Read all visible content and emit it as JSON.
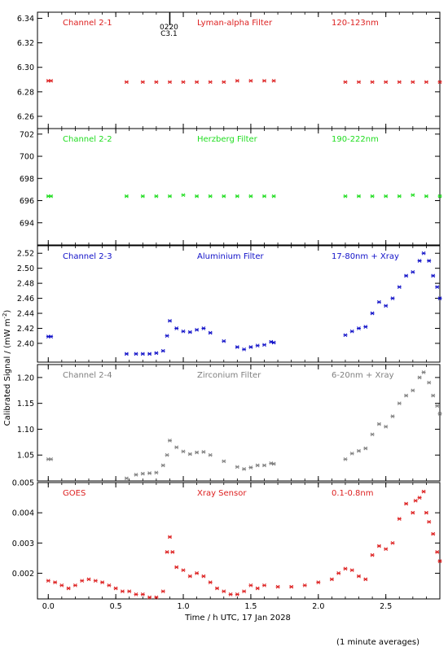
{
  "chart_data": {
    "type": "scatter",
    "xlabel": "Time / h UTC, 17 Jan 2028",
    "ylabel": "Calibrated Signal / (mW m",
    "ylabel_sup": "-2",
    "ylabel_close": ")",
    "footnote": "(1 minute averages)",
    "xlim": [
      -0.08,
      2.9
    ],
    "xticks": [
      0.0,
      0.5,
      1.0,
      1.5,
      2.0,
      2.5
    ],
    "xtick_labels": [
      "0.0",
      "0.5",
      "1.0",
      "1.5",
      "2.0",
      "2.5"
    ],
    "event_marker": {
      "x": 0.9,
      "labels": [
        "0220",
        "C3.1"
      ]
    },
    "panels": [
      {
        "name": "Channel 2-1",
        "filter": "Lyman-alpha Filter",
        "band": "120-123nm",
        "color": "#dd2020",
        "ylim": [
          6.25,
          6.345
        ],
        "yticks": [
          6.26,
          6.28,
          6.3,
          6.32,
          6.34
        ],
        "ytick_labels": [
          "6.26",
          "6.28",
          "6.30",
          "6.32",
          "6.34"
        ],
        "points": [
          [
            0.0,
            6.289
          ],
          [
            0.02,
            6.289
          ],
          [
            0.58,
            6.288
          ],
          [
            0.7,
            6.288
          ],
          [
            0.8,
            6.288
          ],
          [
            0.9,
            6.288
          ],
          [
            1.0,
            6.288
          ],
          [
            1.1,
            6.288
          ],
          [
            1.2,
            6.288
          ],
          [
            1.3,
            6.288
          ],
          [
            1.4,
            6.289
          ],
          [
            1.5,
            6.289
          ],
          [
            1.6,
            6.289
          ],
          [
            1.67,
            6.289
          ],
          [
            2.2,
            6.288
          ],
          [
            2.3,
            6.288
          ],
          [
            2.4,
            6.288
          ],
          [
            2.5,
            6.288
          ],
          [
            2.6,
            6.288
          ],
          [
            2.7,
            6.288
          ],
          [
            2.8,
            6.288
          ],
          [
            2.9,
            6.288
          ]
        ]
      },
      {
        "name": "Channel 2-2",
        "filter": "Herzberg Filter",
        "band": "190-222nm",
        "color": "#20dd20",
        "ylim": [
          692.0,
          702.5
        ],
        "yticks": [
          694,
          696,
          698,
          700,
          702
        ],
        "ytick_labels": [
          "694",
          "696",
          "698",
          "700",
          "702"
        ],
        "points": [
          [
            0.0,
            696.4
          ],
          [
            0.02,
            696.4
          ],
          [
            0.58,
            696.4
          ],
          [
            0.7,
            696.4
          ],
          [
            0.8,
            696.4
          ],
          [
            0.9,
            696.4
          ],
          [
            1.0,
            696.5
          ],
          [
            1.1,
            696.4
          ],
          [
            1.2,
            696.4
          ],
          [
            1.3,
            696.4
          ],
          [
            1.4,
            696.4
          ],
          [
            1.5,
            696.4
          ],
          [
            1.6,
            696.4
          ],
          [
            1.67,
            696.4
          ],
          [
            2.2,
            696.4
          ],
          [
            2.3,
            696.4
          ],
          [
            2.4,
            696.4
          ],
          [
            2.5,
            696.4
          ],
          [
            2.6,
            696.4
          ],
          [
            2.7,
            696.5
          ],
          [
            2.8,
            696.4
          ],
          [
            2.9,
            696.4
          ]
        ]
      },
      {
        "name": "Channel 2-3",
        "filter": "Aluminium Filter",
        "band": "17-80nm + Xray",
        "color": "#1010c8",
        "ylim": [
          2.375,
          2.53
        ],
        "yticks": [
          2.4,
          2.42,
          2.44,
          2.46,
          2.48,
          2.5,
          2.52
        ],
        "ytick_labels": [
          "2.40",
          "2.42",
          "2.44",
          "2.46",
          "2.48",
          "2.50",
          "2.52"
        ],
        "points": [
          [
            0.0,
            2.409
          ],
          [
            0.02,
            2.409
          ],
          [
            0.58,
            2.386
          ],
          [
            0.65,
            2.386
          ],
          [
            0.7,
            2.386
          ],
          [
            0.75,
            2.386
          ],
          [
            0.8,
            2.387
          ],
          [
            0.85,
            2.39
          ],
          [
            0.88,
            2.41
          ],
          [
            0.9,
            2.43
          ],
          [
            0.95,
            2.42
          ],
          [
            1.0,
            2.416
          ],
          [
            1.05,
            2.415
          ],
          [
            1.1,
            2.418
          ],
          [
            1.15,
            2.42
          ],
          [
            1.2,
            2.414
          ],
          [
            1.3,
            2.403
          ],
          [
            1.4,
            2.395
          ],
          [
            1.45,
            2.392
          ],
          [
            1.5,
            2.395
          ],
          [
            1.55,
            2.397
          ],
          [
            1.6,
            2.398
          ],
          [
            1.65,
            2.402
          ],
          [
            1.67,
            2.401
          ],
          [
            2.2,
            2.411
          ],
          [
            2.25,
            2.416
          ],
          [
            2.3,
            2.42
          ],
          [
            2.35,
            2.422
          ],
          [
            2.4,
            2.44
          ],
          [
            2.45,
            2.455
          ],
          [
            2.5,
            2.45
          ],
          [
            2.55,
            2.46
          ],
          [
            2.6,
            2.475
          ],
          [
            2.65,
            2.49
          ],
          [
            2.7,
            2.495
          ],
          [
            2.75,
            2.51
          ],
          [
            2.78,
            2.52
          ],
          [
            2.82,
            2.51
          ],
          [
            2.85,
            2.49
          ],
          [
            2.88,
            2.475
          ],
          [
            2.9,
            2.46
          ]
        ]
      },
      {
        "name": "Channel 2-4",
        "filter": "Zirconium Filter",
        "band": "6-20nm + Xray",
        "color": "#808080",
        "ylim": [
          1.0,
          1.225
        ],
        "yticks": [
          1.05,
          1.1,
          1.15,
          1.2
        ],
        "ytick_labels": [
          "1.05",
          "1.10",
          "1.15",
          "1.20"
        ],
        "points": [
          [
            0.0,
            1.042
          ],
          [
            0.02,
            1.042
          ],
          [
            0.58,
            1.005
          ],
          [
            0.65,
            1.012
          ],
          [
            0.7,
            1.014
          ],
          [
            0.75,
            1.015
          ],
          [
            0.8,
            1.016
          ],
          [
            0.85,
            1.03
          ],
          [
            0.88,
            1.05
          ],
          [
            0.9,
            1.078
          ],
          [
            0.95,
            1.065
          ],
          [
            1.0,
            1.057
          ],
          [
            1.05,
            1.052
          ],
          [
            1.1,
            1.055
          ],
          [
            1.15,
            1.056
          ],
          [
            1.2,
            1.05
          ],
          [
            1.3,
            1.038
          ],
          [
            1.4,
            1.027
          ],
          [
            1.45,
            1.023
          ],
          [
            1.5,
            1.026
          ],
          [
            1.55,
            1.03
          ],
          [
            1.6,
            1.03
          ],
          [
            1.65,
            1.034
          ],
          [
            1.67,
            1.033
          ],
          [
            2.2,
            1.042
          ],
          [
            2.25,
            1.053
          ],
          [
            2.3,
            1.058
          ],
          [
            2.35,
            1.063
          ],
          [
            2.4,
            1.09
          ],
          [
            2.45,
            1.11
          ],
          [
            2.5,
            1.105
          ],
          [
            2.55,
            1.125
          ],
          [
            2.6,
            1.15
          ],
          [
            2.65,
            1.165
          ],
          [
            2.7,
            1.175
          ],
          [
            2.75,
            1.2
          ],
          [
            2.78,
            1.21
          ],
          [
            2.82,
            1.19
          ],
          [
            2.85,
            1.165
          ],
          [
            2.88,
            1.145
          ],
          [
            2.9,
            1.13
          ]
        ]
      },
      {
        "name": "GOES",
        "filter": "Xray Sensor",
        "band": "0.1-0.8nm",
        "color": "#dd2020",
        "ylim": [
          0.00115,
          0.005
        ],
        "yticks": [
          0.002,
          0.003,
          0.004,
          0.005
        ],
        "ytick_labels": [
          "0.002",
          "0.003",
          "0.004",
          "0.005"
        ],
        "points": [
          [
            0.0,
            0.00175
          ],
          [
            0.05,
            0.0017
          ],
          [
            0.1,
            0.0016
          ],
          [
            0.15,
            0.0015
          ],
          [
            0.2,
            0.0016
          ],
          [
            0.25,
            0.00175
          ],
          [
            0.3,
            0.0018
          ],
          [
            0.35,
            0.00175
          ],
          [
            0.4,
            0.0017
          ],
          [
            0.45,
            0.0016
          ],
          [
            0.5,
            0.0015
          ],
          [
            0.55,
            0.0014
          ],
          [
            0.6,
            0.0014
          ],
          [
            0.65,
            0.0013
          ],
          [
            0.7,
            0.0013
          ],
          [
            0.75,
            0.0012
          ],
          [
            0.8,
            0.0012
          ],
          [
            0.85,
            0.0014
          ],
          [
            0.88,
            0.0027
          ],
          [
            0.9,
            0.0032
          ],
          [
            0.92,
            0.0027
          ],
          [
            0.95,
            0.0022
          ],
          [
            1.0,
            0.0021
          ],
          [
            1.05,
            0.0019
          ],
          [
            1.1,
            0.002
          ],
          [
            1.15,
            0.0019
          ],
          [
            1.2,
            0.0017
          ],
          [
            1.25,
            0.0015
          ],
          [
            1.3,
            0.0014
          ],
          [
            1.35,
            0.0013
          ],
          [
            1.4,
            0.0013
          ],
          [
            1.45,
            0.0014
          ],
          [
            1.5,
            0.0016
          ],
          [
            1.55,
            0.0015
          ],
          [
            1.6,
            0.0016
          ],
          [
            1.7,
            0.00155
          ],
          [
            1.8,
            0.00155
          ],
          [
            1.9,
            0.0016
          ],
          [
            2.0,
            0.0017
          ],
          [
            2.1,
            0.0018
          ],
          [
            2.15,
            0.002
          ],
          [
            2.2,
            0.00215
          ],
          [
            2.25,
            0.0021
          ],
          [
            2.3,
            0.0019
          ],
          [
            2.35,
            0.0018
          ],
          [
            2.4,
            0.0026
          ],
          [
            2.45,
            0.0029
          ],
          [
            2.5,
            0.0028
          ],
          [
            2.55,
            0.003
          ],
          [
            2.6,
            0.0038
          ],
          [
            2.65,
            0.0043
          ],
          [
            2.7,
            0.004
          ],
          [
            2.72,
            0.0044
          ],
          [
            2.75,
            0.0045
          ],
          [
            2.78,
            0.0047
          ],
          [
            2.8,
            0.004
          ],
          [
            2.82,
            0.0037
          ],
          [
            2.85,
            0.0033
          ],
          [
            2.88,
            0.0027
          ],
          [
            2.9,
            0.0024
          ]
        ]
      }
    ]
  }
}
